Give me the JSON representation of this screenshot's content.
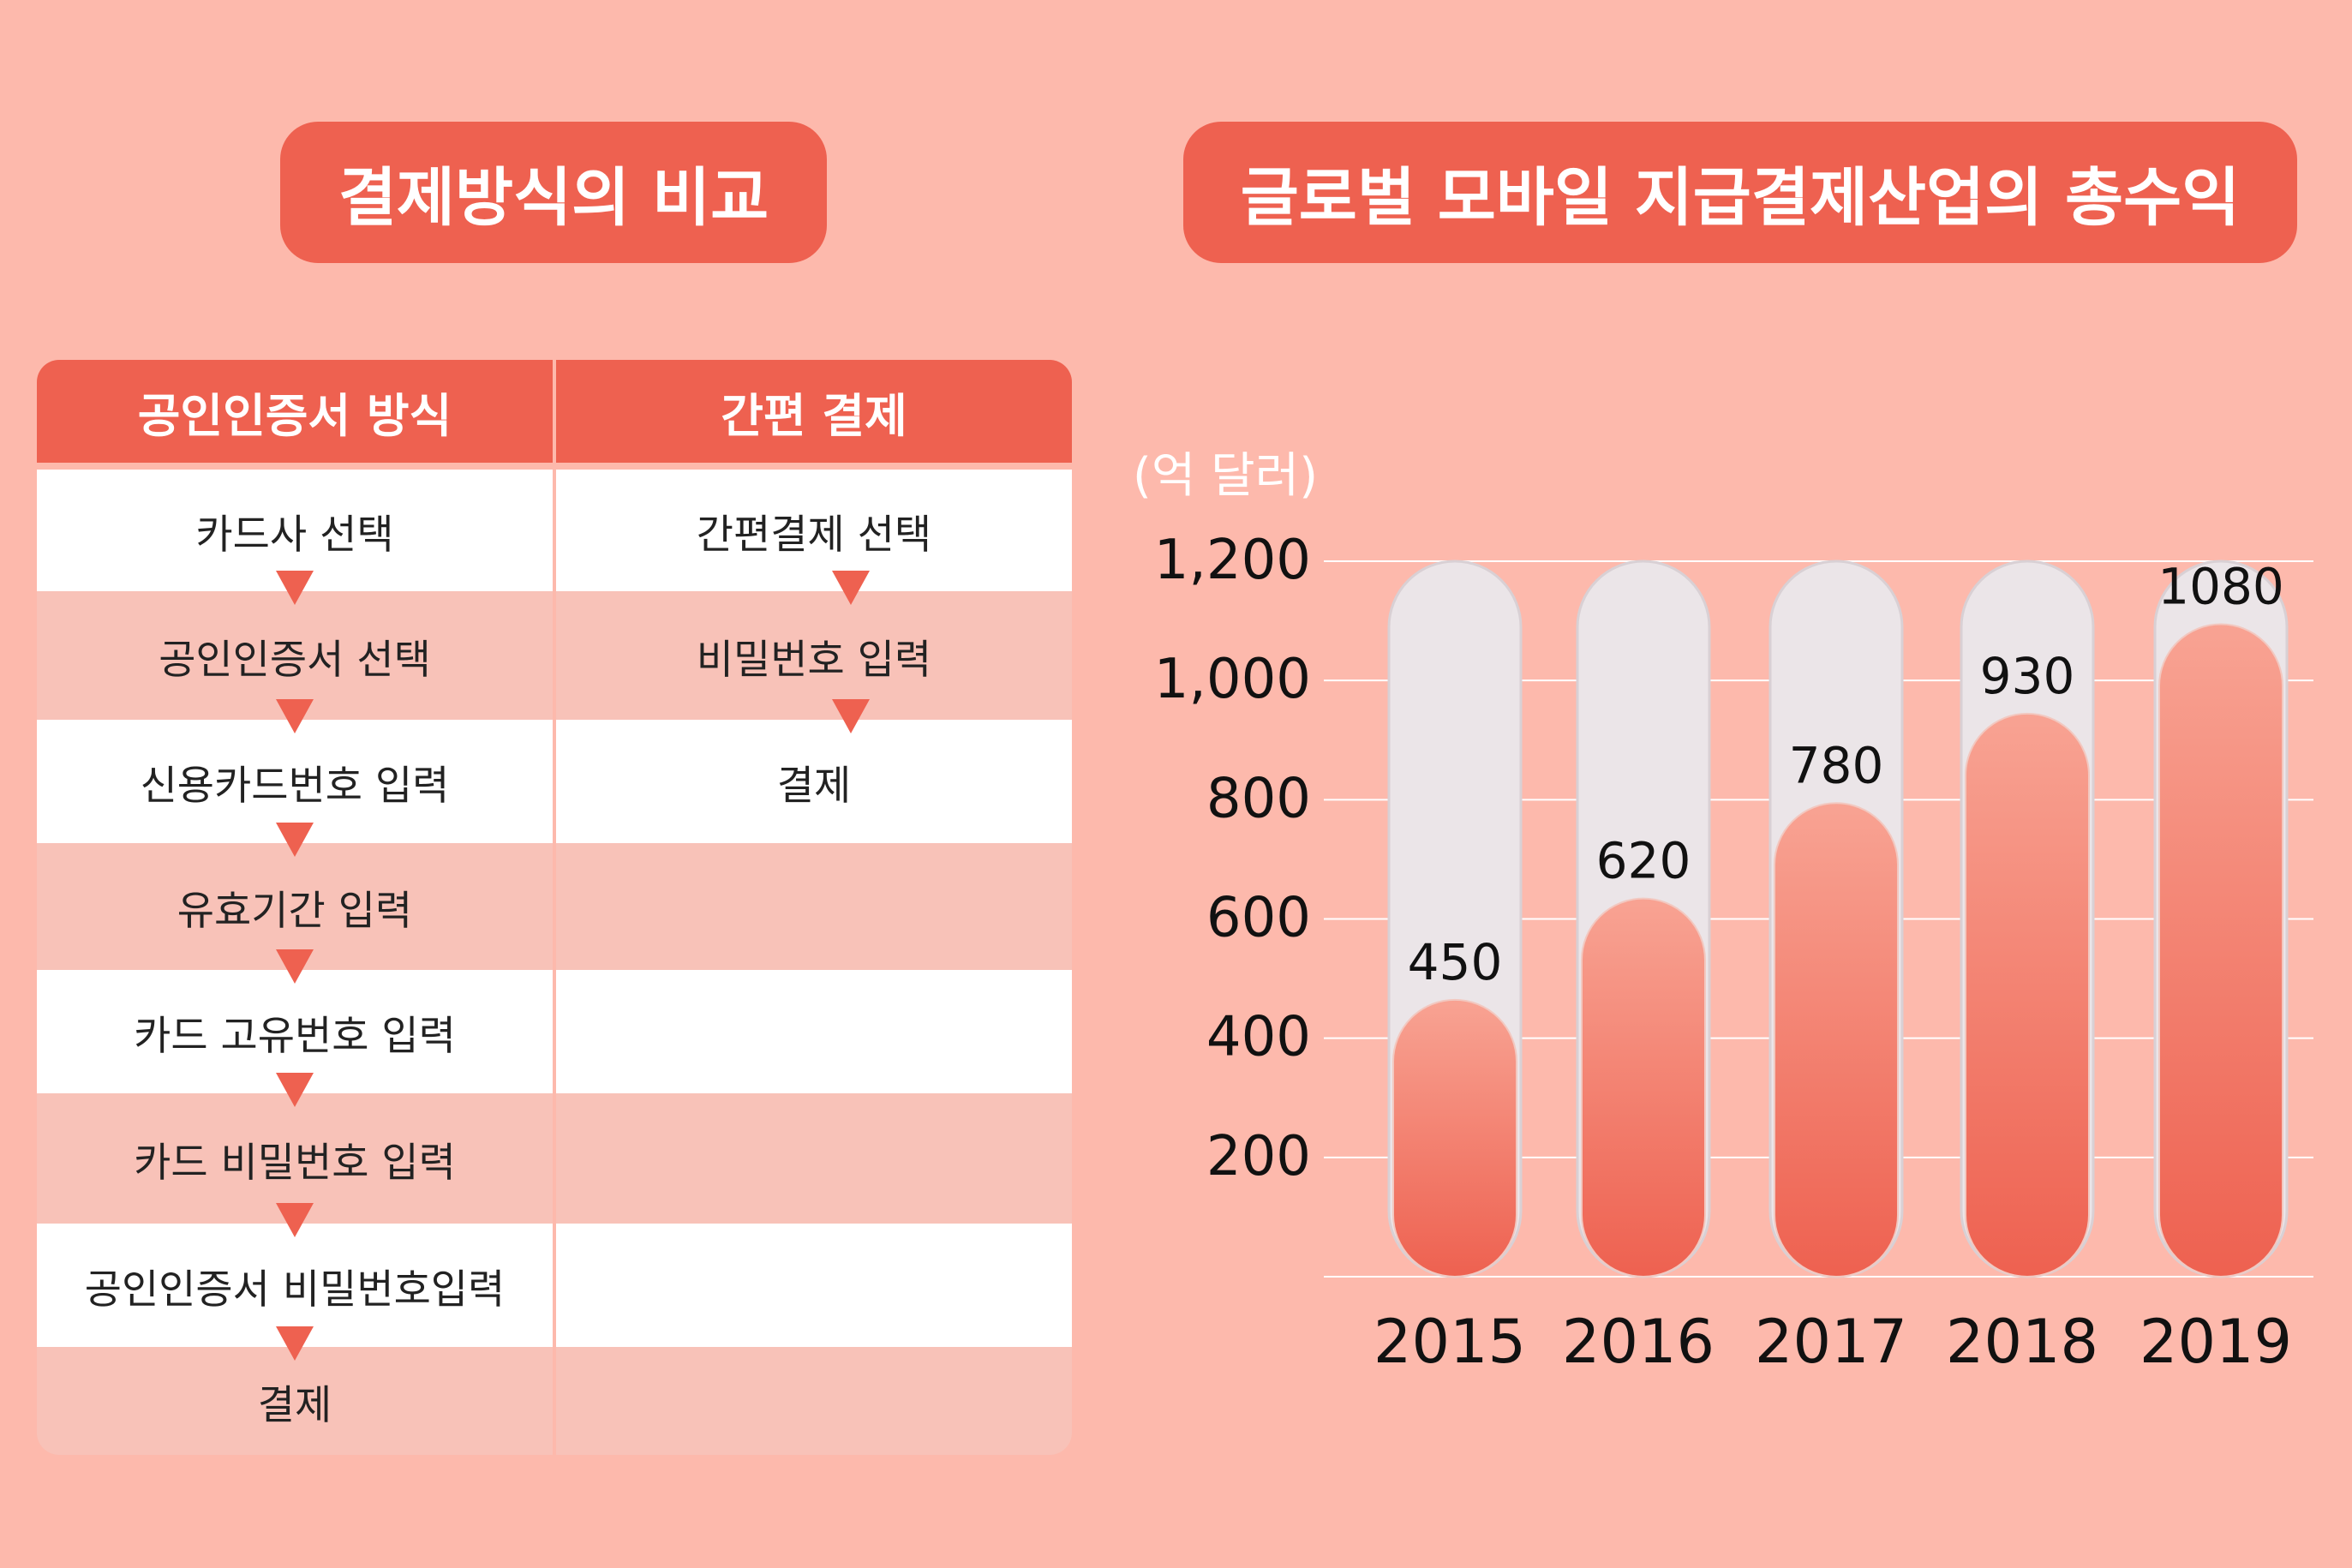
{
  "left_title": "결제방식의 비교",
  "right_title": "글로벌 모바일 지급결제산업의 총수익",
  "table": {
    "headers": [
      "공인인증서 방식",
      "간편 결제"
    ],
    "rows": [
      [
        "카드사 선택",
        "간편결제 선택"
      ],
      [
        "공인인증서 선택",
        "비밀번호 입력"
      ],
      [
        "신용카드번호 입력",
        "결제"
      ],
      [
        "유효기간 입력",
        ""
      ],
      [
        "카드 고유번호 입력",
        ""
      ],
      [
        "카드 비밀번호 입력",
        ""
      ],
      [
        "공인인증서 비밀번호입력",
        ""
      ],
      [
        "결제",
        ""
      ]
    ]
  },
  "chart_data": {
    "type": "bar",
    "title": "글로벌 모바일 지급결제산업의 총수익",
    "unit_label": "(억 달러)",
    "categories": [
      "2015",
      "2016",
      "2017",
      "2018",
      "2019"
    ],
    "values": [
      450,
      620,
      780,
      930,
      1080
    ],
    "value_labels": [
      "450",
      "620",
      "780",
      "930",
      "1080"
    ],
    "ylim": [
      0,
      1200
    ],
    "yticks": [
      200,
      400,
      600,
      800,
      1000,
      1200
    ],
    "ytick_labels": [
      "200",
      "400",
      "600",
      "800",
      "1,000",
      "1,200"
    ],
    "grid": true
  },
  "colors": {
    "background": "#fdb9ac",
    "accent": "#ee6150",
    "track": "#ebe5e8",
    "bar_top": "#f8a393",
    "bar_bottom": "#ee6150"
  }
}
